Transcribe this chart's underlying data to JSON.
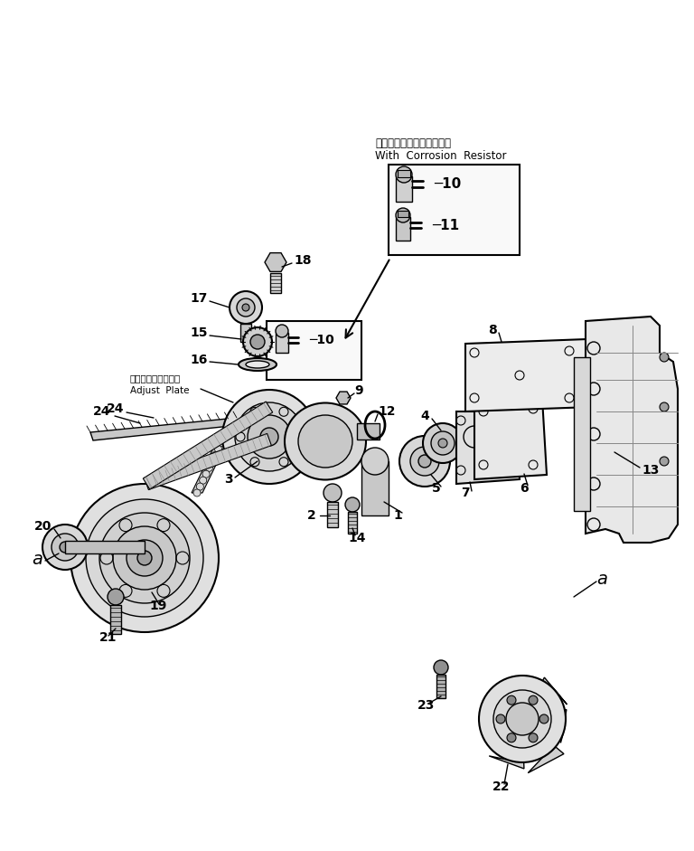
{
  "bg_color": "#ffffff",
  "lc": "#000000",
  "fig_w": 7.68,
  "fig_h": 9.41,
  "dpi": 100,
  "corrosion_text_jp": "コロージョンレジスタ付き",
  "corrosion_text_en": "With  Corrosion  Resistor",
  "adjust_jp": "アジャストプレート",
  "adjust_en": "Adjust  Plate"
}
